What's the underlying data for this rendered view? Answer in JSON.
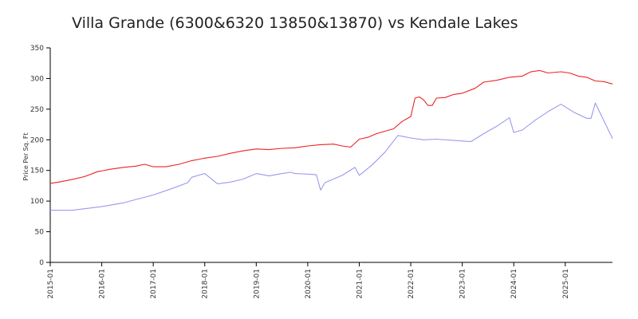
{
  "chart_data": {
    "type": "line",
    "title": "Villa Grande (6300&6320 13850&13870) vs Kendale Lakes",
    "xlabel": "",
    "ylabel": "Price Per Sq. Ft",
    "ylim": [
      0,
      350
    ],
    "yticks": [
      0,
      50,
      100,
      150,
      200,
      250,
      300,
      350
    ],
    "xlim": [
      "2015-01",
      "2025-12"
    ],
    "xticks": [
      "2015-01",
      "2016-01",
      "2017-01",
      "2018-01",
      "2019-01",
      "2020-01",
      "2021-01",
      "2022-01",
      "2023-01",
      "2024-01",
      "2025-01"
    ],
    "grid": false,
    "legend": "none",
    "series": [
      {
        "color": "#ee2222",
        "points": [
          [
            "2015-01",
            129
          ],
          [
            "2015-03",
            131
          ],
          [
            "2015-06",
            135
          ],
          [
            "2015-09",
            140
          ],
          [
            "2015-12",
            148
          ],
          [
            "2016-03",
            152
          ],
          [
            "2016-06",
            155
          ],
          [
            "2016-09",
            157
          ],
          [
            "2016-11",
            160
          ],
          [
            "2017-01",
            156
          ],
          [
            "2017-04",
            156
          ],
          [
            "2017-07",
            160
          ],
          [
            "2017-10",
            166
          ],
          [
            "2018-01",
            170
          ],
          [
            "2018-04",
            173
          ],
          [
            "2018-07",
            178
          ],
          [
            "2018-10",
            182
          ],
          [
            "2019-01",
            185
          ],
          [
            "2019-04",
            184
          ],
          [
            "2019-07",
            186
          ],
          [
            "2019-10",
            187
          ],
          [
            "2020-01",
            190
          ],
          [
            "2020-04",
            192
          ],
          [
            "2020-07",
            193
          ],
          [
            "2020-09",
            190
          ],
          [
            "2020-11",
            188
          ],
          [
            "2021-01",
            201
          ],
          [
            "2021-03",
            204
          ],
          [
            "2021-05",
            210
          ],
          [
            "2021-07",
            214
          ],
          [
            "2021-09",
            218
          ],
          [
            "2021-11",
            230
          ],
          [
            "2022-01",
            238
          ],
          [
            "2022-02",
            268
          ],
          [
            "2022-03",
            270
          ],
          [
            "2022-04",
            265
          ],
          [
            "2022-05",
            256
          ],
          [
            "2022-06",
            256
          ],
          [
            "2022-07",
            268
          ],
          [
            "2022-09",
            269
          ],
          [
            "2022-11",
            274
          ],
          [
            "2023-01",
            276
          ],
          [
            "2023-04",
            284
          ],
          [
            "2023-06",
            294
          ],
          [
            "2023-09",
            297
          ],
          [
            "2023-12",
            302
          ],
          [
            "2024-03",
            304
          ],
          [
            "2024-05",
            311
          ],
          [
            "2024-07",
            313
          ],
          [
            "2024-09",
            309
          ],
          [
            "2024-12",
            311
          ],
          [
            "2025-02",
            309
          ],
          [
            "2025-04",
            304
          ],
          [
            "2025-06",
            302
          ],
          [
            "2025-08",
            296
          ],
          [
            "2025-10",
            295
          ],
          [
            "2025-12",
            291
          ]
        ]
      },
      {
        "color": "#9999ee",
        "points": [
          [
            "2015-01",
            85
          ],
          [
            "2015-06",
            85
          ],
          [
            "2016-01",
            91
          ],
          [
            "2016-06",
            97
          ],
          [
            "2017-01",
            110
          ],
          [
            "2017-06",
            122
          ],
          [
            "2017-09",
            130
          ],
          [
            "2017-10",
            139
          ],
          [
            "2018-01",
            145
          ],
          [
            "2018-04",
            128
          ],
          [
            "2018-07",
            131
          ],
          [
            "2018-10",
            136
          ],
          [
            "2019-01",
            145
          ],
          [
            "2019-04",
            141
          ],
          [
            "2019-07",
            145
          ],
          [
            "2019-09",
            147
          ],
          [
            "2019-10",
            145
          ],
          [
            "2020-01",
            144
          ],
          [
            "2020-03",
            143
          ],
          [
            "2020-04",
            118
          ],
          [
            "2020-05",
            130
          ],
          [
            "2020-09",
            142
          ],
          [
            "2020-12",
            155
          ],
          [
            "2021-01",
            142
          ],
          [
            "2021-04",
            159
          ],
          [
            "2021-07",
            180
          ],
          [
            "2021-10",
            207
          ],
          [
            "2022-01",
            203
          ],
          [
            "2022-04",
            200
          ],
          [
            "2022-07",
            201
          ],
          [
            "2023-01",
            198
          ],
          [
            "2023-03",
            197
          ],
          [
            "2023-06",
            210
          ],
          [
            "2023-09",
            222
          ],
          [
            "2023-12",
            236
          ],
          [
            "2024-01",
            212
          ],
          [
            "2024-03",
            216
          ],
          [
            "2024-06",
            232
          ],
          [
            "2024-09",
            246
          ],
          [
            "2024-12",
            258
          ],
          [
            "2025-03",
            245
          ],
          [
            "2025-06",
            235
          ],
          [
            "2025-07",
            235
          ],
          [
            "2025-08",
            260
          ],
          [
            "2025-12",
            202
          ]
        ]
      }
    ]
  }
}
